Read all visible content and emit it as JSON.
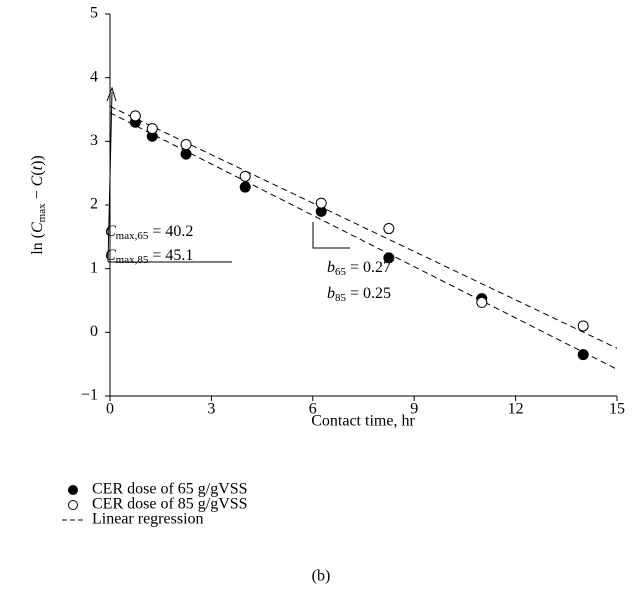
{
  "chart_data": {
    "type": "scatter",
    "x_label": "Contact time, hr",
    "y_label": [
      "ln (",
      "C",
      "max",
      " − ",
      "C",
      "(",
      "t",
      "))"
    ],
    "xlim": [
      0,
      15
    ],
    "xticks": [
      0,
      3,
      6,
      9,
      12,
      15
    ],
    "ylim": [
      -1,
      5
    ],
    "yticks": [
      {
        "value": -1,
        "label": "−1"
      },
      0,
      1,
      2,
      3,
      4,
      5
    ],
    "series": [
      {
        "name": "CER dose of 65 g/gVSS",
        "marker": "filled",
        "color": "#000",
        "x": [
          0.75,
          1.25,
          2.25,
          4,
          6.25,
          8.25,
          11,
          14
        ],
        "values": [
          3.3,
          3.08,
          2.8,
          2.28,
          1.9,
          1.17,
          0.53,
          -0.35
        ]
      },
      {
        "name": "CER dose of 85 g/gVSS",
        "marker": "open",
        "color": "#000",
        "x": [
          0.75,
          1.25,
          2.25,
          4,
          6.25,
          8.25,
          11,
          14
        ],
        "values": [
          3.4,
          3.2,
          2.95,
          2.45,
          2.03,
          1.63,
          0.47,
          0.1
        ]
      }
    ],
    "regression": {
      "name": "Linear regression",
      "lines": [
        {
          "x": [
            0,
            15
          ],
          "values": [
            3.45,
            -0.58
          ]
        },
        {
          "x": [
            0,
            15
          ],
          "values": [
            3.55,
            -0.25
          ]
        }
      ]
    },
    "annotations": [
      [
        "C",
        "max,65",
        " = 40.2"
      ],
      [
        "C",
        "max,85",
        " = 45.1"
      ],
      [
        "b",
        "65",
        " = 0.27"
      ],
      [
        "b",
        "85",
        " = 0.25"
      ]
    ],
    "caption": "(b)"
  }
}
